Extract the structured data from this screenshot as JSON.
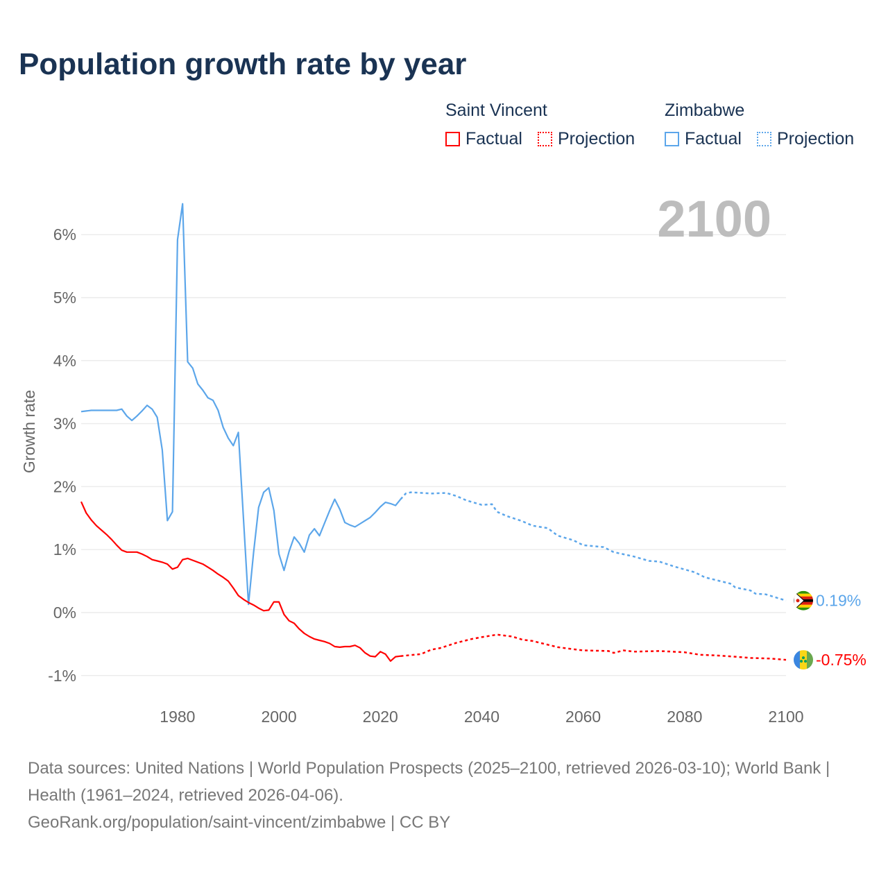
{
  "title": "Population growth rate by year",
  "legend": {
    "groups": [
      {
        "name": "Saint Vincent",
        "factual": "Factual",
        "projection": "Projection",
        "color": "#ff0000"
      },
      {
        "name": "Zimbabwe",
        "factual": "Factual",
        "projection": "Projection",
        "color": "#5ca6ea"
      }
    ]
  },
  "year_label": "2100",
  "source": {
    "line1": "Data sources: United Nations | World Population Prospects (2025–2100, retrieved 2026-03-10); World Bank | Health (1961–2024, retrieved 2026-04-06).",
    "line2": "GeoRank.org/population/saint-vincent/zimbabwe | CC BY"
  },
  "chart_data": {
    "type": "line",
    "title": "Population growth rate by year",
    "xlabel": "",
    "ylabel": "Growth rate",
    "xlim": [
      1961,
      2100
    ],
    "ylim": [
      -1.2,
      6.6
    ],
    "xticks": [
      1980,
      2000,
      2020,
      2040,
      2060,
      2080,
      2100
    ],
    "yticks": [
      -1,
      0,
      1,
      2,
      3,
      4,
      5,
      6
    ],
    "ytick_labels": [
      "-1%",
      "0%",
      "1%",
      "2%",
      "3%",
      "4%",
      "5%",
      "6%"
    ],
    "grid": true,
    "series": [
      {
        "name": "Zimbabwe",
        "color": "#5ca6ea",
        "end_label": "0.19%",
        "factual_start": 1961,
        "factual": [
          3.19,
          3.2,
          3.21,
          3.21,
          3.21,
          3.21,
          3.21,
          3.21,
          3.23,
          3.12,
          3.05,
          3.12,
          3.2,
          3.29,
          3.23,
          3.1,
          2.58,
          1.46,
          1.6,
          5.92,
          6.49,
          3.98,
          3.88,
          3.63,
          3.53,
          3.41,
          3.37,
          3.21,
          2.94,
          2.77,
          2.65,
          2.86,
          1.5,
          0.13,
          0.95,
          1.67,
          1.91,
          1.98,
          1.62,
          0.93,
          0.67,
          0.97,
          1.2,
          1.1,
          0.96,
          1.23,
          1.33,
          1.22,
          1.42,
          1.62,
          1.8,
          1.64,
          1.43,
          1.39,
          1.36,
          1.41,
          1.46,
          1.51,
          1.59,
          1.68,
          1.75,
          1.73,
          1.7,
          1.8
        ],
        "projection": [
          [
            2024,
            1.8
          ],
          [
            2025,
            1.89
          ],
          [
            2026,
            1.91
          ],
          [
            2030,
            1.89
          ],
          [
            2033,
            1.9
          ],
          [
            2035,
            1.85
          ],
          [
            2037,
            1.78
          ],
          [
            2040,
            1.71
          ],
          [
            2042,
            1.72
          ],
          [
            2043,
            1.6
          ],
          [
            2045,
            1.53
          ],
          [
            2048,
            1.45
          ],
          [
            2050,
            1.38
          ],
          [
            2053,
            1.34
          ],
          [
            2055,
            1.22
          ],
          [
            2058,
            1.15
          ],
          [
            2060,
            1.07
          ],
          [
            2064,
            1.04
          ],
          [
            2066,
            0.96
          ],
          [
            2070,
            0.89
          ],
          [
            2073,
            0.82
          ],
          [
            2075,
            0.81
          ],
          [
            2078,
            0.73
          ],
          [
            2082,
            0.64
          ],
          [
            2084,
            0.56
          ],
          [
            2087,
            0.5
          ],
          [
            2089,
            0.46
          ],
          [
            2090,
            0.4
          ],
          [
            2093,
            0.35
          ],
          [
            2094,
            0.3
          ],
          [
            2096,
            0.29
          ],
          [
            2098,
            0.24
          ],
          [
            2100,
            0.19
          ]
        ]
      },
      {
        "name": "Saint Vincent",
        "color": "#ff0000",
        "end_label": "-0.75%",
        "factual_start": 1961,
        "factual": [
          1.76,
          1.58,
          1.47,
          1.38,
          1.31,
          1.24,
          1.16,
          1.07,
          0.99,
          0.96,
          0.96,
          0.96,
          0.93,
          0.89,
          0.84,
          0.82,
          0.8,
          0.77,
          0.69,
          0.72,
          0.84,
          0.86,
          0.83,
          0.8,
          0.77,
          0.72,
          0.67,
          0.61,
          0.56,
          0.5,
          0.39,
          0.27,
          0.21,
          0.16,
          0.12,
          0.07,
          0.03,
          0.04,
          0.17,
          0.17,
          -0.03,
          -0.13,
          -0.17,
          -0.26,
          -0.33,
          -0.38,
          -0.42,
          -0.44,
          -0.46,
          -0.49,
          -0.54,
          -0.55,
          -0.54,
          -0.54,
          -0.52,
          -0.56,
          -0.64,
          -0.69,
          -0.7,
          -0.62,
          -0.66,
          -0.77,
          -0.7,
          -0.69
        ],
        "projection": [
          [
            2024,
            -0.69
          ],
          [
            2028,
            -0.66
          ],
          [
            2030,
            -0.59
          ],
          [
            2032,
            -0.56
          ],
          [
            2035,
            -0.48
          ],
          [
            2038,
            -0.42
          ],
          [
            2040,
            -0.39
          ],
          [
            2043,
            -0.35
          ],
          [
            2046,
            -0.38
          ],
          [
            2048,
            -0.43
          ],
          [
            2050,
            -0.45
          ],
          [
            2053,
            -0.51
          ],
          [
            2055,
            -0.55
          ],
          [
            2058,
            -0.58
          ],
          [
            2060,
            -0.6
          ],
          [
            2065,
            -0.61
          ],
          [
            2066,
            -0.64
          ],
          [
            2068,
            -0.6
          ],
          [
            2070,
            -0.62
          ],
          [
            2075,
            -0.61
          ],
          [
            2080,
            -0.63
          ],
          [
            2083,
            -0.67
          ],
          [
            2086,
            -0.68
          ],
          [
            2090,
            -0.7
          ],
          [
            2093,
            -0.72
          ],
          [
            2097,
            -0.73
          ],
          [
            2100,
            -0.75
          ]
        ]
      }
    ]
  }
}
